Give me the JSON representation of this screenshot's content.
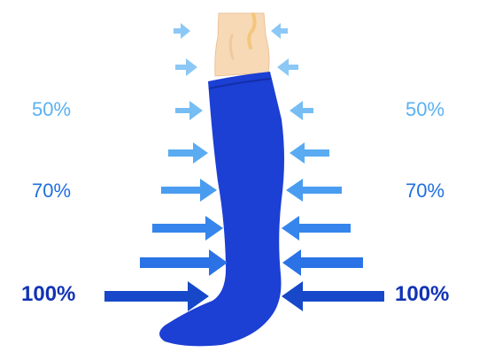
{
  "labels": {
    "left_50": "50%",
    "right_50": "50%",
    "left_70": "70%",
    "right_70": "70%",
    "left_100": "100%",
    "right_100": "100%"
  },
  "colors": {
    "arrow_light": "#8cc8f5",
    "arrow_mid": "#4a9cf0",
    "arrow_strong": "#2a72e6",
    "arrow_deep": "#1648c9",
    "sock": "#1c3fd4",
    "skin": "#f7d9b6"
  },
  "icons": {
    "figure": "compression-sock-leg",
    "arrows": "pressure-arrow"
  }
}
